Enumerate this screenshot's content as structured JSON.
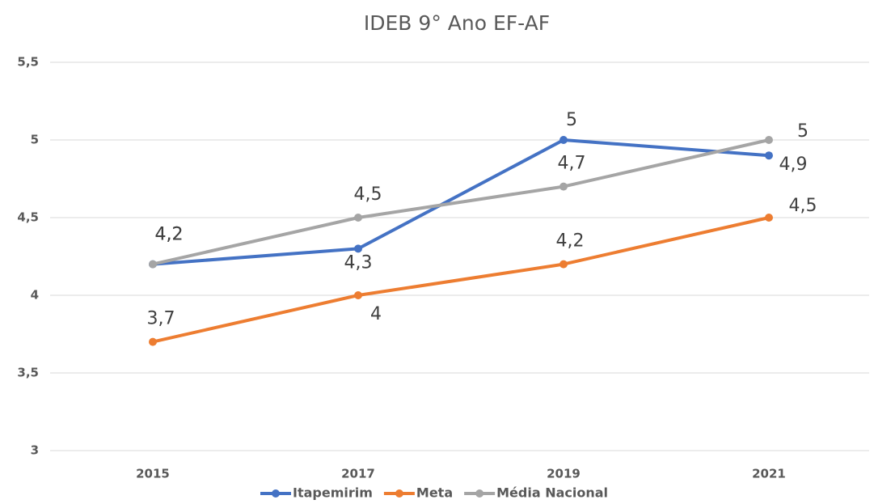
{
  "chart_data": {
    "type": "line",
    "title": "IDEB 9° Ano EF-AF",
    "categories": [
      "2015",
      "2017",
      "2019",
      "2021"
    ],
    "series": [
      {
        "name": "Itapemirim",
        "color": "#4472c4",
        "values": [
          4.2,
          4.3,
          5,
          4.9
        ],
        "value_labels": [
          "4,2",
          "4,3",
          "5",
          "4,9"
        ]
      },
      {
        "name": "Meta",
        "color": "#ed7d31",
        "values": [
          3.7,
          4,
          4.2,
          4.5
        ],
        "value_labels": [
          "3,7",
          "4",
          "4,2",
          "4,5"
        ]
      },
      {
        "name": "Média Nacional",
        "color": "#a5a5a5",
        "values": [
          4.2,
          4.5,
          4.7,
          5
        ],
        "value_labels": [
          "4,2",
          "4,5",
          "4,7",
          "5"
        ]
      }
    ],
    "ylim": [
      3,
      5.5
    ],
    "yticks": [
      3,
      {
        "value": 3.5,
        "label": "3,5"
      },
      4,
      {
        "value": 4.5,
        "label": "4,5"
      },
      5,
      {
        "value": 5.5,
        "label": "5,5"
      }
    ],
    "grid": true,
    "legend": "bottom"
  }
}
